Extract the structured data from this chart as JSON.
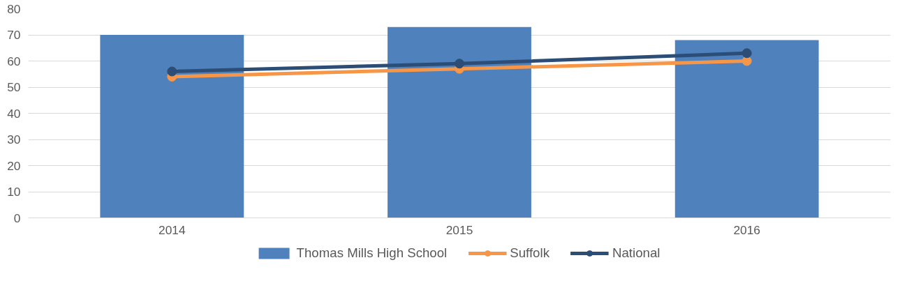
{
  "chart_data": {
    "type": "bar",
    "categories": [
      "2014",
      "2015",
      "2016"
    ],
    "series": [
      {
        "name": "Thomas Mills High School",
        "color": "#4f81bd",
        "values": [
          70,
          73,
          68
        ]
      },
      {
        "name": "Suffolk",
        "type": "line",
        "color": "#f79646",
        "values": [
          54,
          57,
          60
        ],
        "marker": "circle",
        "line_style": "solid"
      },
      {
        "name": "National",
        "type": "line",
        "color": "#2c4d75",
        "values": [
          56,
          59,
          63
        ],
        "marker": "circle",
        "line_style": "solid"
      }
    ],
    "ylim": [
      0,
      80
    ],
    "yticks": [
      0,
      10,
      20,
      30,
      40,
      50,
      60,
      70,
      80
    ],
    "grid": "y",
    "legend": "bottom"
  }
}
